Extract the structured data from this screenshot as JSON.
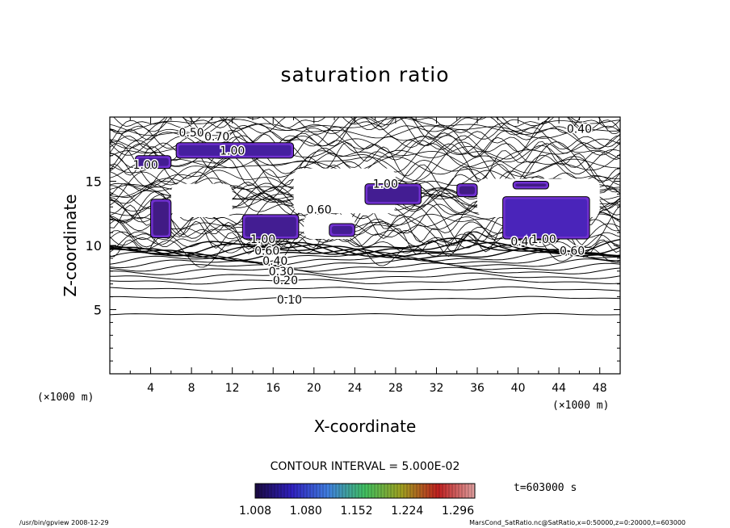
{
  "chart_data": {
    "type": "heatmap",
    "title": "saturation ratio",
    "xlabel": "X-coordinate",
    "ylabel": "Z-coordinate",
    "x_unit": "(×1000 m)",
    "y_unit": "(×1000 m)",
    "xlim": [
      0,
      50
    ],
    "ylim": [
      0,
      20
    ],
    "x_ticks": [
      "4",
      "8",
      "12",
      "16",
      "20",
      "24",
      "28",
      "32",
      "36",
      "40",
      "44",
      "48"
    ],
    "y_ticks": [
      "5",
      "10",
      "15"
    ],
    "contour_interval_label": "CONTOUR INTERVAL = 5.000E-02",
    "time_label": "t=603000 s",
    "colorbar": {
      "ticks": [
        "1.008",
        "1.080",
        "1.152",
        "1.224",
        "1.296"
      ],
      "min": 1.008,
      "max": 1.32,
      "colors": [
        "#1a0a40",
        "#3020c0",
        "#4080e0",
        "#40c060",
        "#a0a020",
        "#c02020",
        "#e0a0a0"
      ]
    },
    "contour_labels": [
      {
        "text": "0.10",
        "x": 17.6,
        "z": 5.8
      },
      {
        "text": "0.20",
        "x": 17.2,
        "z": 7.3
      },
      {
        "text": "0.30",
        "x": 16.8,
        "z": 8.0
      },
      {
        "text": "0.40",
        "x": 16.2,
        "z": 8.8
      },
      {
        "text": "0.60",
        "x": 15.4,
        "z": 9.6
      },
      {
        "text": "1.00",
        "x": 15.0,
        "z": 10.5
      },
      {
        "text": "0.50",
        "x": 8.0,
        "z": 18.8
      },
      {
        "text": "0.70",
        "x": 10.5,
        "z": 18.5
      },
      {
        "text": "1.00",
        "x": 12.0,
        "z": 17.4
      },
      {
        "text": "0.40",
        "x": 46.0,
        "z": 19.1
      },
      {
        "text": "0.60",
        "x": 45.3,
        "z": 9.6
      },
      {
        "text": "0.40",
        "x": 40.5,
        "z": 10.3
      },
      {
        "text": "1.00",
        "x": 42.5,
        "z": 10.5
      },
      {
        "text": "1.00",
        "x": 27.0,
        "z": 14.8
      },
      {
        "text": "0.60",
        "x": 20.5,
        "z": 12.8
      },
      {
        "text": "1.00",
        "x": 3.5,
        "z": 16.3
      }
    ],
    "supersaturated_regions": [
      {
        "x": [
          2.5,
          6.0
        ],
        "z": [
          16.0,
          17.0
        ],
        "value": 1.02
      },
      {
        "x": [
          6.5,
          18.0
        ],
        "z": [
          16.8,
          18.0
        ],
        "value": 1.03
      },
      {
        "x": [
          4.0,
          6.0
        ],
        "z": [
          10.6,
          13.6
        ],
        "value": 1.01
      },
      {
        "x": [
          13.0,
          18.5
        ],
        "z": [
          10.5,
          12.4
        ],
        "value": 1.02
      },
      {
        "x": [
          21.5,
          24.0
        ],
        "z": [
          10.7,
          11.7
        ],
        "value": 1.02
      },
      {
        "x": [
          25.0,
          30.5
        ],
        "z": [
          13.2,
          14.8
        ],
        "value": 1.02
      },
      {
        "x": [
          34.0,
          36.0
        ],
        "z": [
          13.8,
          14.8
        ],
        "value": 1.01
      },
      {
        "x": [
          38.5,
          47.0
        ],
        "z": [
          10.5,
          13.8
        ],
        "value": 1.05
      },
      {
        "x": [
          39.5,
          43.0
        ],
        "z": [
          14.4,
          15.0
        ],
        "value": 1.01
      }
    ]
  },
  "footer": {
    "left": "/usr/bin/gpview  2008-12-29",
    "right": "MarsCond_SatRatio.nc@SatRatio,x=0:50000,z=0:20000,t=603000"
  }
}
